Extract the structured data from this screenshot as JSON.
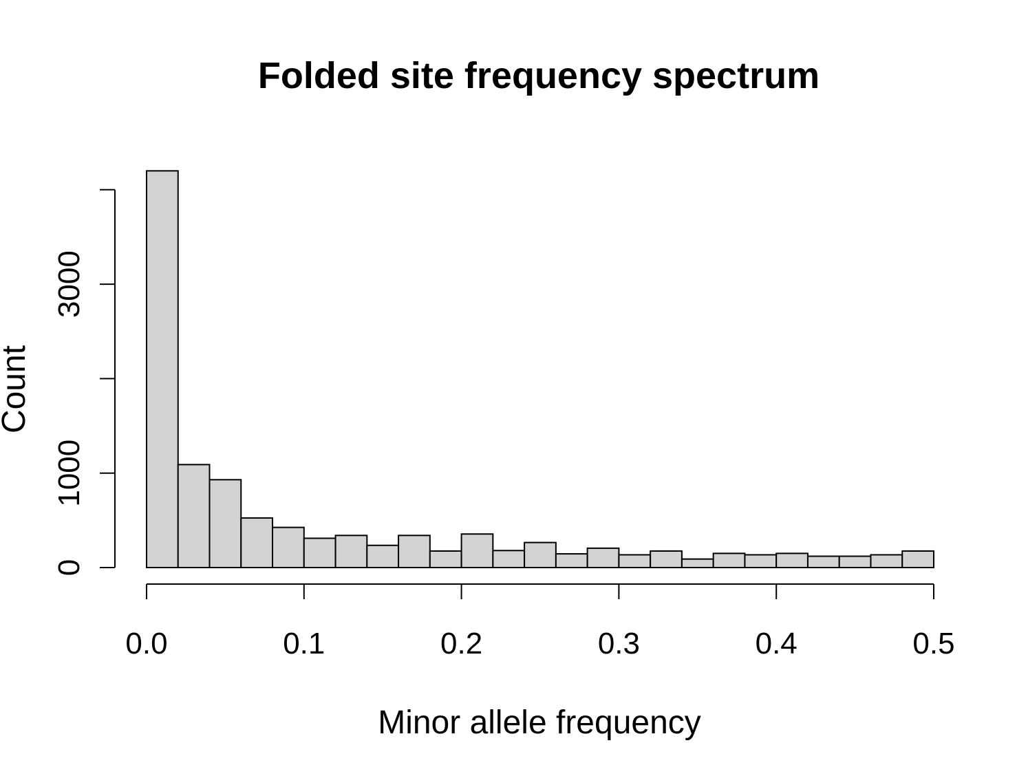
{
  "chart_data": {
    "type": "bar",
    "title": "Folded site frequency spectrum",
    "xlabel": "Minor allele frequency",
    "ylabel": "Count",
    "bin_edges": [
      0.0,
      0.02,
      0.04,
      0.06,
      0.08,
      0.1,
      0.12,
      0.14,
      0.16,
      0.18,
      0.2,
      0.22,
      0.24,
      0.26,
      0.28,
      0.3,
      0.32,
      0.34,
      0.36,
      0.38,
      0.4,
      0.42,
      0.44,
      0.46,
      0.48,
      0.5
    ],
    "values": [
      4200,
      1090,
      930,
      525,
      425,
      310,
      340,
      235,
      340,
      175,
      355,
      180,
      265,
      145,
      205,
      135,
      175,
      90,
      150,
      135,
      150,
      120,
      120,
      135,
      175
    ],
    "xlim": [
      0.0,
      0.5
    ],
    "ylim": [
      0,
      4200
    ],
    "x_ticks": [
      0.0,
      0.1,
      0.2,
      0.3,
      0.4,
      0.5
    ],
    "x_tick_labels": [
      "0.0",
      "0.1",
      "0.2",
      "0.3",
      "0.4",
      "0.5"
    ],
    "y_ticks": [
      0,
      1000,
      2000,
      3000,
      4000
    ],
    "y_tick_labels": [
      "0",
      "1000",
      "",
      "3000",
      ""
    ],
    "bar_fill": "#d3d3d3",
    "bar_stroke": "#000000",
    "grid": false,
    "legend": "none"
  }
}
